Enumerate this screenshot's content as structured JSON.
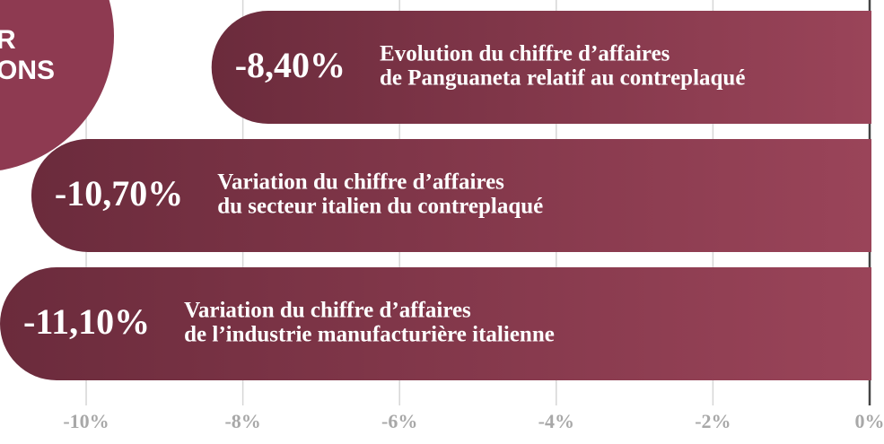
{
  "chart_data": {
    "type": "bar",
    "orientation": "horizontal",
    "annotations": [
      "R",
      "ONS"
    ],
    "categories": [
      [
        "Evolution du chiffre d’affaires",
        "de Panguaneta relatif au contreplaqué"
      ],
      [
        "Variation du chiffre d’affaires",
        "du secteur italien du contreplaqué"
      ],
      [
        "Variation du chiffre d’affaires",
        "de l’industrie manufacturière italienne"
      ]
    ],
    "values": [
      -8.4,
      -10.7,
      -11.1
    ],
    "value_labels": [
      "-8,40%",
      "-10,70%",
      "-11,10%"
    ],
    "color": [
      "#6b2b3c",
      "#9a4459"
    ],
    "xlim": [
      -11.1,
      0
    ],
    "xticks": [
      {
        "value": -10,
        "label": "-10%"
      },
      {
        "value": -8,
        "label": "-8%"
      },
      {
        "value": -6,
        "label": "-6%"
      },
      {
        "value": -4,
        "label": "-4%"
      },
      {
        "value": -2,
        "label": "-2%"
      },
      {
        "value": 0,
        "label": "0%"
      }
    ],
    "grid": true
  }
}
